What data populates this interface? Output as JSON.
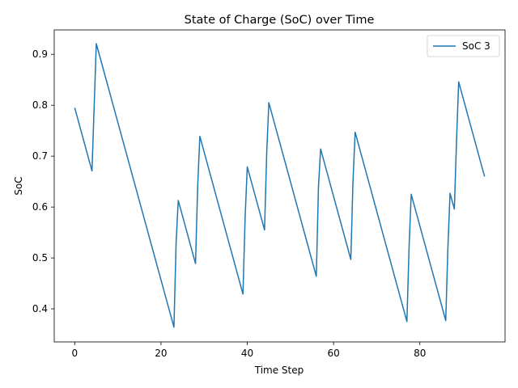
{
  "chart_data": {
    "type": "line",
    "title": "State of Charge (SoC) over Time",
    "xlabel": "Time Step",
    "ylabel": "SoC",
    "xlim": [
      -4.75,
      99.75
    ],
    "ylim": [
      0.335,
      0.948
    ],
    "xticks": [
      0,
      20,
      40,
      60,
      80
    ],
    "yticks": [
      0.4,
      0.5,
      0.6,
      0.7,
      0.8,
      0.9
    ],
    "ytick_labels": [
      "0.4",
      "0.5",
      "0.6",
      "0.7",
      "0.8",
      "0.9"
    ],
    "grid": false,
    "legend_position": "upper right",
    "series": [
      {
        "name": "SoC 3",
        "color": "#1f77b4",
        "points": [
          [
            0,
            0.795
          ],
          [
            4,
            0.671
          ],
          [
            5,
            0.921
          ],
          [
            23,
            0.364
          ],
          [
            23.5,
            0.53
          ],
          [
            24,
            0.613
          ],
          [
            28,
            0.489
          ],
          [
            28.5,
            0.64
          ],
          [
            29,
            0.739
          ],
          [
            39,
            0.429
          ],
          [
            39.5,
            0.58
          ],
          [
            40,
            0.679
          ],
          [
            44,
            0.555
          ],
          [
            44.5,
            0.705
          ],
          [
            45,
            0.805
          ],
          [
            56,
            0.464
          ],
          [
            56.5,
            0.64
          ],
          [
            57,
            0.714
          ],
          [
            64,
            0.497
          ],
          [
            64.5,
            0.65
          ],
          [
            65,
            0.747
          ],
          [
            77,
            0.375
          ],
          [
            77.5,
            0.52
          ],
          [
            78,
            0.625
          ],
          [
            86,
            0.377
          ],
          [
            86.5,
            0.52
          ],
          [
            87,
            0.627
          ],
          [
            88,
            0.596
          ],
          [
            88.5,
            0.73
          ],
          [
            89,
            0.846
          ],
          [
            95,
            0.66
          ]
        ]
      }
    ]
  }
}
